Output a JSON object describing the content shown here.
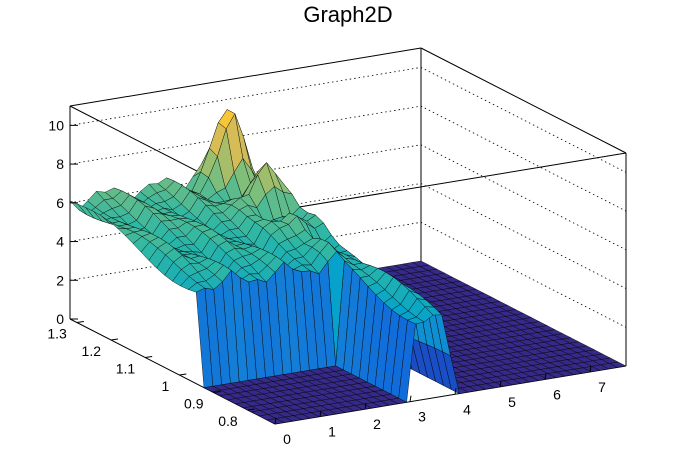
{
  "chart_data": {
    "type": "surface",
    "title": "Graph2D",
    "xlabel": "",
    "ylabel": "",
    "zlabel": "",
    "x_ticks": [
      "0",
      "1",
      "2",
      "3",
      "4",
      "5",
      "6",
      "7"
    ],
    "y_ticks": [
      "0.8",
      "0.9",
      "1",
      "1.1",
      "1.2",
      "1.3"
    ],
    "z_ticks": [
      "0",
      "2",
      "4",
      "6",
      "8",
      "10"
    ],
    "xlim": [
      0,
      7.8
    ],
    "ylim": [
      0.72,
      1.32
    ],
    "zlim": [
      0,
      11
    ],
    "grid": true,
    "colormap": [
      "#352a87",
      "#0f5cdd",
      "#1481d6",
      "#06a4ca",
      "#2eb7a4",
      "#87bf77",
      "#d1bb59",
      "#fec832",
      "#f9fb0e"
    ],
    "surface_description": [
      {
        "region": "x 0-3, y 0.72-0.95",
        "z": 0
      },
      {
        "region": "x 0-3, y 0.95-1.32",
        "z": [
          5,
          6
        ]
      },
      {
        "region": "x 3-4, all y",
        "z": [
          5,
          11
        ]
      },
      {
        "region": "x 4-7.8, all y",
        "z": 0
      }
    ],
    "peak": {
      "x": 3.2,
      "y": 1.25,
      "z": 11
    }
  }
}
